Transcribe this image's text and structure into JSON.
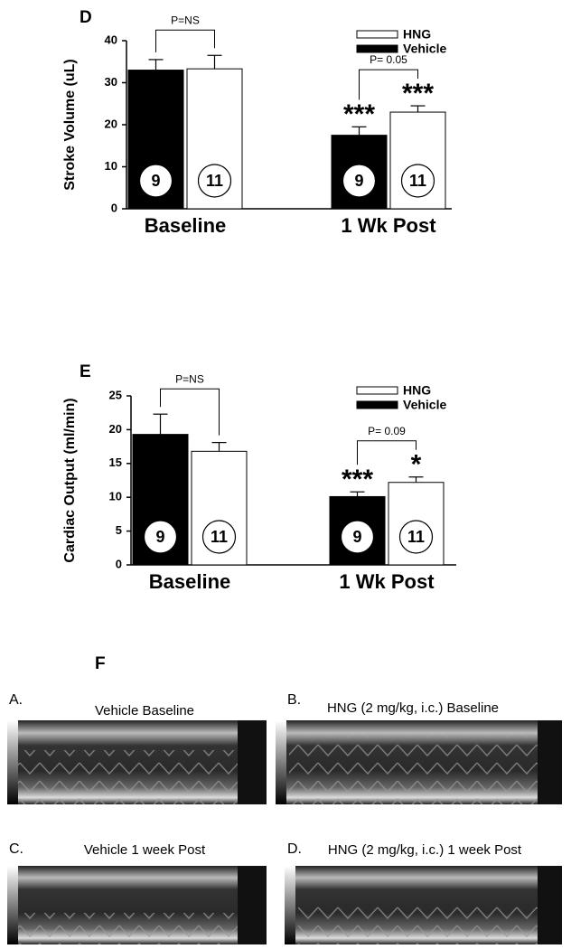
{
  "chart_data": [
    {
      "type": "bar",
      "title": "D",
      "y_label": "Stroke Volume (uL)",
      "categories": [
        "Baseline",
        "1 Wk Post"
      ],
      "ylim": [
        0,
        40
      ],
      "yticks": [
        0,
        10,
        20,
        30,
        40
      ],
      "legend": "upper right",
      "series": [
        {
          "name": "Vehicle",
          "color": "#000000",
          "values": [
            33,
            17.5
          ],
          "errors": [
            2.5,
            2
          ],
          "n": [
            9,
            9
          ],
          "stars": [
            null,
            "***"
          ]
        },
        {
          "name": "HNG",
          "color": "#ffffff",
          "values": [
            33.3,
            23
          ],
          "errors": [
            3.2,
            1.5
          ],
          "n": [
            11,
            11
          ],
          "stars": [
            null,
            "***"
          ]
        }
      ],
      "brackets": [
        "P=NS",
        "P= 0.05"
      ]
    },
    {
      "type": "bar",
      "title": "E",
      "y_label": "Cardiac Output (ml/min)",
      "categories": [
        "Baseline",
        "1 Wk Post"
      ],
      "ylim": [
        0,
        25
      ],
      "yticks": [
        0,
        5,
        10,
        15,
        20,
        25
      ],
      "legend": "upper right",
      "series": [
        {
          "name": "Vehicle",
          "color": "#000000",
          "values": [
            19.3,
            10.1
          ],
          "errors": [
            3,
            0.7
          ],
          "n": [
            9,
            9
          ],
          "stars": [
            null,
            "***"
          ]
        },
        {
          "name": "HNG",
          "color": "#ffffff",
          "values": [
            16.8,
            12.2
          ],
          "errors": [
            1.3,
            0.8
          ],
          "n": [
            11,
            11
          ],
          "stars": [
            null,
            "*"
          ]
        }
      ],
      "brackets": [
        "P=NS",
        "P= 0.09"
      ]
    }
  ],
  "echo_panel": {
    "label": "F",
    "images": [
      {
        "letter": "A.",
        "title": "Vehicle Baseline"
      },
      {
        "letter": "B.",
        "title": "HNG (2 mg/kg, i.c.) Baseline"
      },
      {
        "letter": "C.",
        "title": "Vehicle 1 week Post"
      },
      {
        "letter": "D.",
        "title": "HNG (2 mg/kg, i.c.) 1 week Post"
      }
    ]
  }
}
